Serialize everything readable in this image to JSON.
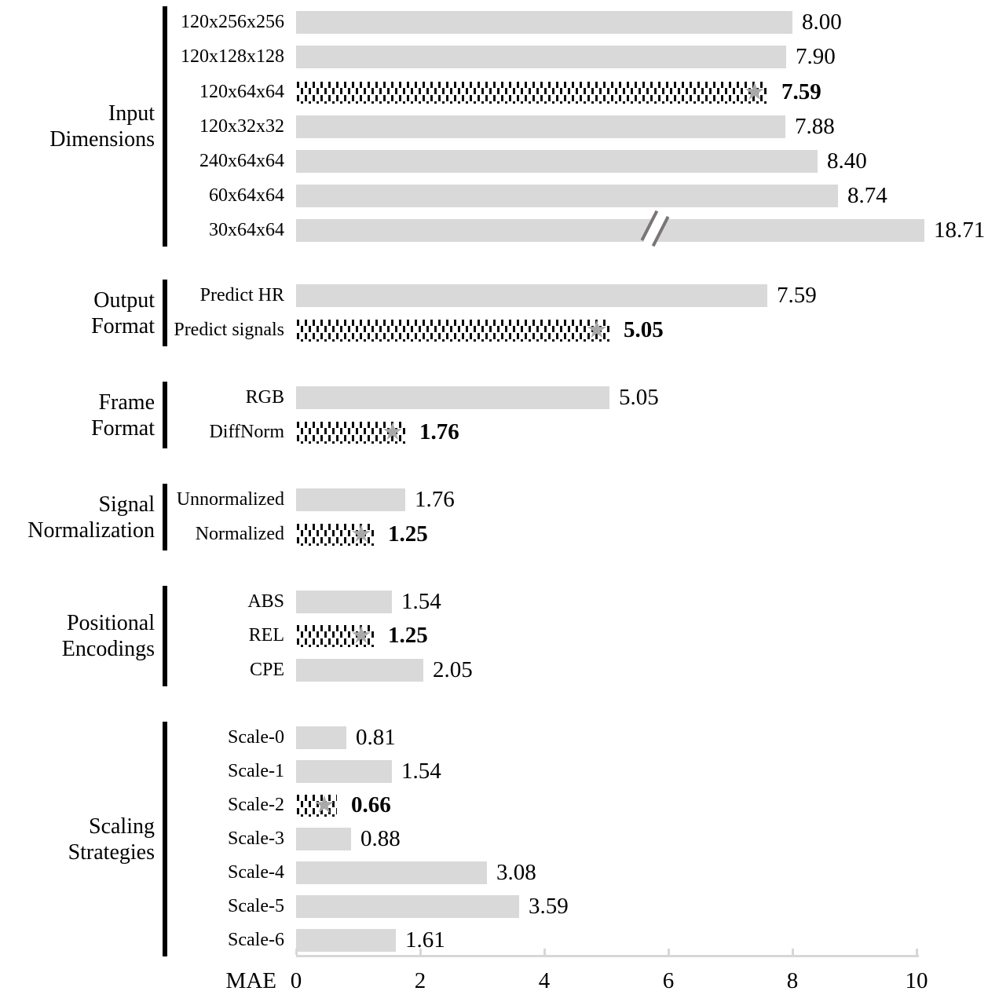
{
  "chart_data": {
    "type": "bar",
    "orientation": "horizontal",
    "title": "",
    "xlabel": "MAE",
    "ylabel": "",
    "axis": {
      "label": "MAE",
      "ticks": [
        0,
        2,
        4,
        6,
        8,
        10
      ],
      "range": [
        0,
        10
      ]
    },
    "grid": false,
    "legend": false,
    "marker_glyph": "★",
    "marker_meaning": "best (selected) setting in each group; drawn as dotted bar with gray star and bold value",
    "groups": [
      {
        "name": "Input Dimensions",
        "label_lines": [
          "Input",
          "Dimensions"
        ],
        "bars": [
          {
            "label": "120x256x256",
            "value": 8.0,
            "display": "8.00",
            "best": false
          },
          {
            "label": "120x128x128",
            "value": 7.9,
            "display": "7.90",
            "best": false
          },
          {
            "label": "120x64x64",
            "value": 7.59,
            "display": "7.59",
            "best": true
          },
          {
            "label": "120x32x32",
            "value": 7.88,
            "display": "7.88",
            "best": false
          },
          {
            "label": "240x64x64",
            "value": 8.4,
            "display": "8.40",
            "best": false
          },
          {
            "label": "60x64x64",
            "value": 8.74,
            "display": "8.74",
            "best": false
          },
          {
            "label": "30x64x64",
            "value": 18.71,
            "display": "18.71",
            "best": false,
            "axis_break": true
          }
        ]
      },
      {
        "name": "Output Format",
        "label_lines": [
          "Output",
          "Format"
        ],
        "bars": [
          {
            "label": "Predict HR",
            "value": 7.59,
            "display": "7.59",
            "best": false
          },
          {
            "label": "Predict signals",
            "value": 5.05,
            "display": "5.05",
            "best": true
          }
        ]
      },
      {
        "name": "Frame Format",
        "label_lines": [
          "Frame",
          "Format"
        ],
        "bars": [
          {
            "label": "RGB",
            "value": 5.05,
            "display": "5.05",
            "best": false
          },
          {
            "label": "DiffNorm",
            "value": 1.76,
            "display": "1.76",
            "best": true
          }
        ]
      },
      {
        "name": "Signal Normalization",
        "label_lines": [
          "Signal",
          "Normalization"
        ],
        "bars": [
          {
            "label": "Unnormalized",
            "value": 1.76,
            "display": "1.76",
            "best": false
          },
          {
            "label": "Normalized",
            "value": 1.25,
            "display": "1.25",
            "best": true
          }
        ]
      },
      {
        "name": "Positional Encodings",
        "label_lines": [
          "Positional",
          "Encodings"
        ],
        "bars": [
          {
            "label": "ABS",
            "value": 1.54,
            "display": "1.54",
            "best": false
          },
          {
            "label": "REL",
            "value": 1.25,
            "display": "1.25",
            "best": true
          },
          {
            "label": "CPE",
            "value": 2.05,
            "display": "2.05",
            "best": false
          }
        ]
      },
      {
        "name": "Scaling Strategies",
        "label_lines": [
          "Scaling",
          "Strategies"
        ],
        "bars": [
          {
            "label": "Scale-0",
            "value": 0.81,
            "display": "0.81",
            "best": false
          },
          {
            "label": "Scale-1",
            "value": 1.54,
            "display": "1.54",
            "best": false
          },
          {
            "label": "Scale-2",
            "value": 0.66,
            "display": "0.66",
            "best": true
          },
          {
            "label": "Scale-3",
            "value": 0.88,
            "display": "0.88",
            "best": false
          },
          {
            "label": "Scale-4",
            "value": 3.08,
            "display": "3.08",
            "best": false
          },
          {
            "label": "Scale-5",
            "value": 3.59,
            "display": "3.59",
            "best": false
          },
          {
            "label": "Scale-6",
            "value": 1.61,
            "display": "1.61",
            "best": false
          }
        ]
      }
    ],
    "colors": {
      "bar_fill": "#d9d9d9",
      "best_bar_pattern": "#0c0c0c",
      "star": "#a9a9a9",
      "axis": "#d7d7d7",
      "divider": "#000000",
      "break_marks": "#7b7575",
      "text": "#000000"
    }
  }
}
